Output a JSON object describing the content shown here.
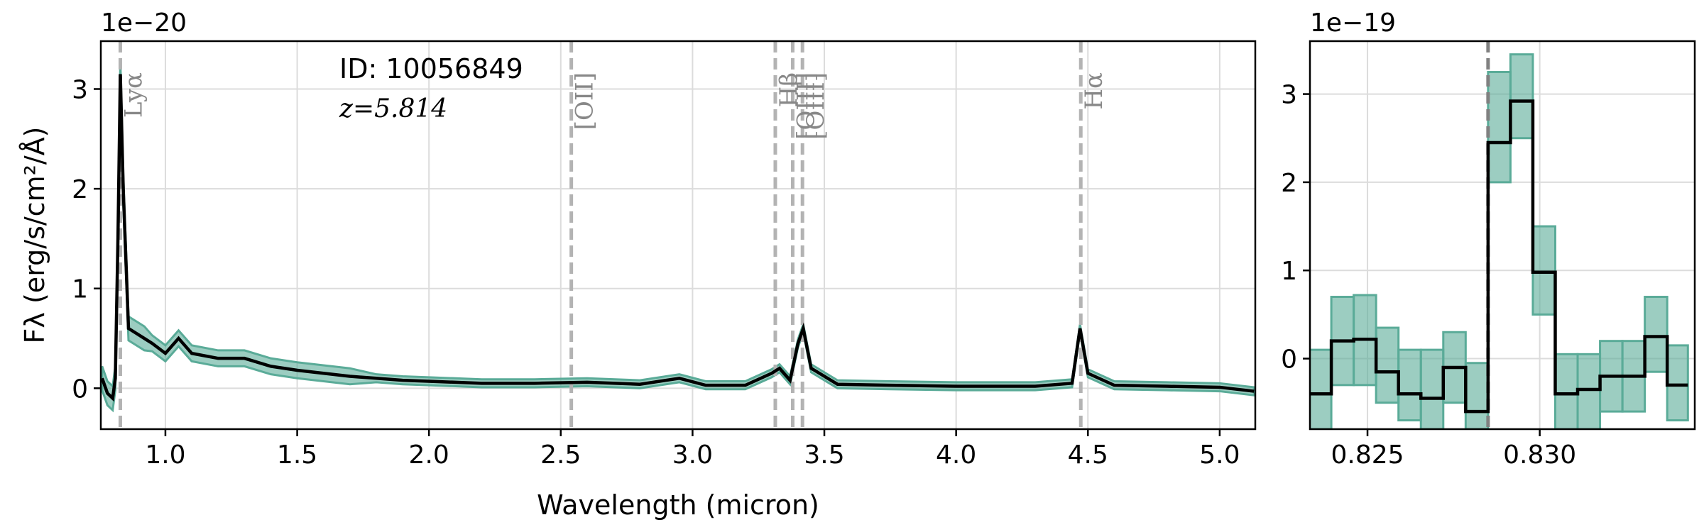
{
  "chart_data": [
    {
      "type": "line",
      "drawstyle": "line",
      "offset_text": "1e−20",
      "ylabel": "Fλ (erg/s/cm²/Å)",
      "xlabel": "Wavelength (micron)",
      "annotations": [
        "ID: 10056849",
        "z=5.814"
      ],
      "xlim": [
        0.755,
        5.135
      ],
      "ylim": [
        -0.41,
        3.48
      ],
      "xticks": [
        {
          "value": 1.0,
          "label": "1.0"
        },
        1.5,
        {
          "value": 2.0,
          "label": "2.0"
        },
        2.5,
        {
          "value": 3.0,
          "label": "3.0"
        },
        3.5,
        {
          "value": 4.0,
          "label": "4.0"
        },
        4.5,
        {
          "value": 5.0,
          "label": "5.0"
        }
      ],
      "yticks": [
        0,
        1,
        2,
        3
      ],
      "grid": true,
      "lines": [
        {
          "x": 0.829,
          "label": "Lyα"
        },
        {
          "x": 2.54,
          "label": "[OII]"
        },
        {
          "x": 3.314,
          "label": "Hβ"
        },
        {
          "x": 3.38,
          "label": "[OIII]"
        },
        {
          "x": 3.417,
          "label": "[OIII]"
        },
        {
          "x": 4.473,
          "label": "Hα"
        }
      ],
      "line_color": "#b3b3b3",
      "x": [
        0.76,
        0.78,
        0.8,
        0.81,
        0.82,
        0.829,
        0.84,
        0.86,
        0.89,
        0.92,
        0.95,
        1.0,
        1.05,
        1.1,
        1.2,
        1.3,
        1.4,
        1.5,
        1.6,
        1.7,
        1.8,
        1.9,
        2.0,
        2.2,
        2.4,
        2.6,
        2.8,
        2.95,
        3.05,
        3.2,
        3.3,
        3.33,
        3.37,
        3.4,
        3.42,
        3.45,
        3.55,
        3.75,
        4.0,
        4.3,
        4.44,
        4.47,
        4.5,
        4.6,
        4.8,
        5.0,
        5.13
      ],
      "series": [
        {
          "color": "#000000",
          "values": [
            0.1,
            -0.05,
            -0.1,
            0.1,
            1.5,
            3.15,
            2.0,
            0.6,
            0.55,
            0.5,
            0.45,
            0.35,
            0.5,
            0.35,
            0.3,
            0.3,
            0.22,
            0.18,
            0.15,
            0.12,
            0.1,
            0.08,
            0.07,
            0.05,
            0.05,
            0.06,
            0.04,
            0.1,
            0.03,
            0.03,
            0.15,
            0.2,
            0.08,
            0.45,
            0.6,
            0.2,
            0.04,
            0.03,
            0.02,
            0.02,
            0.05,
            0.6,
            0.15,
            0.03,
            0.02,
            0.01,
            -0.03
          ]
        }
      ],
      "band": {
        "color": "#5aab98",
        "upper": [
          0.22,
          0.07,
          0.02,
          0.22,
          1.62,
          3.3,
          2.15,
          0.72,
          0.67,
          0.62,
          0.53,
          0.43,
          0.58,
          0.43,
          0.38,
          0.38,
          0.3,
          0.26,
          0.23,
          0.2,
          0.14,
          0.12,
          0.11,
          0.09,
          0.09,
          0.1,
          0.08,
          0.14,
          0.07,
          0.07,
          0.19,
          0.24,
          0.12,
          0.49,
          0.64,
          0.24,
          0.08,
          0.07,
          0.06,
          0.06,
          0.09,
          0.64,
          0.19,
          0.07,
          0.06,
          0.05,
          0.01
        ],
        "lower": [
          -0.02,
          -0.17,
          -0.22,
          -0.02,
          1.38,
          3.0,
          1.85,
          0.48,
          0.43,
          0.38,
          0.37,
          0.27,
          0.42,
          0.27,
          0.22,
          0.22,
          0.14,
          0.1,
          0.07,
          0.04,
          0.06,
          0.04,
          0.03,
          0.01,
          0.01,
          0.02,
          0.0,
          0.06,
          -0.01,
          -0.01,
          0.11,
          0.16,
          0.04,
          0.41,
          0.56,
          0.16,
          0.0,
          -0.01,
          -0.02,
          -0.02,
          0.01,
          0.56,
          0.11,
          -0.01,
          -0.02,
          -0.03,
          -0.07
        ]
      }
    },
    {
      "type": "line",
      "drawstyle": "steps",
      "offset_text": "1e−19",
      "xlim": [
        0.82333,
        0.8345
      ],
      "ylim": [
        -0.8,
        3.6
      ],
      "xticks": [
        0.825,
        {
          "value": 0.83,
          "label": "0.830"
        }
      ],
      "yticks": [
        0,
        1,
        2,
        3
      ],
      "grid": true,
      "lines": [
        {
          "x": 0.8285
        }
      ],
      "line_color": "#808080",
      "x": [
        0.8236,
        0.8243,
        0.8249,
        0.8256,
        0.8262,
        0.8269,
        0.8275,
        0.8282,
        0.8288,
        0.8295,
        0.8301,
        0.8308,
        0.8314,
        0.8321,
        0.8327,
        0.8334,
        0.834
      ],
      "series": [
        {
          "color": "#000000",
          "values": [
            -0.4,
            0.2,
            0.22,
            -0.15,
            -0.4,
            -0.45,
            -0.1,
            -0.6,
            2.45,
            2.92,
            0.98,
            -0.4,
            -0.35,
            -0.2,
            -0.2,
            0.25,
            -0.3
          ]
        }
      ],
      "band": {
        "color": "#5aab98",
        "lower": [
          -0.8,
          -0.3,
          -0.3,
          -0.5,
          -0.7,
          -0.8,
          -0.5,
          -0.8,
          2.0,
          2.5,
          0.5,
          -0.8,
          -0.8,
          -0.6,
          -0.6,
          -0.15,
          -0.7
        ],
        "upper": [
          0.1,
          0.7,
          0.72,
          0.35,
          0.1,
          0.1,
          0.3,
          -0.05,
          3.25,
          3.45,
          1.5,
          0.05,
          0.05,
          0.2,
          0.2,
          0.7,
          0.15
        ]
      }
    }
  ]
}
